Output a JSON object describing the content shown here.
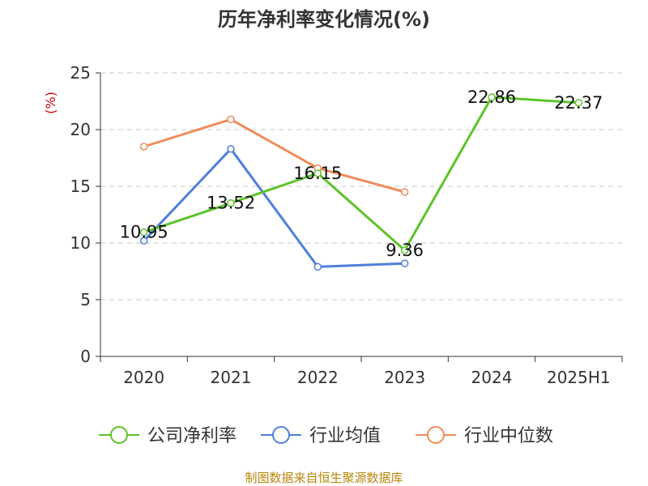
{
  "chart_data": {
    "type": "line",
    "title": "历年净利率变化情况(%)",
    "ylabel": "(%)",
    "categories": [
      "2020",
      "2021",
      "2022",
      "2023",
      "2024",
      "2025H1"
    ],
    "ylim": [
      0,
      25
    ],
    "yticks": [
      0,
      5,
      10,
      15,
      20,
      25
    ],
    "grid": true,
    "legend_position": "bottom",
    "series": [
      {
        "name": "公司净利率",
        "color": "#5cc42a",
        "values": [
          10.95,
          13.52,
          16.15,
          9.36,
          22.86,
          22.37
        ],
        "labels": [
          "10.95",
          "13.52",
          "16.15",
          "9.36",
          "22.86",
          "22.37"
        ]
      },
      {
        "name": "行业均值",
        "color": "#4f7fdc",
        "values": [
          10.2,
          18.3,
          7.9,
          8.2,
          null,
          null
        ]
      },
      {
        "name": "行业中位数",
        "color": "#f08c5a",
        "values": [
          18.5,
          20.9,
          16.6,
          14.5,
          null,
          null
        ]
      }
    ],
    "source": "制图数据来自恒生聚源数据库"
  }
}
